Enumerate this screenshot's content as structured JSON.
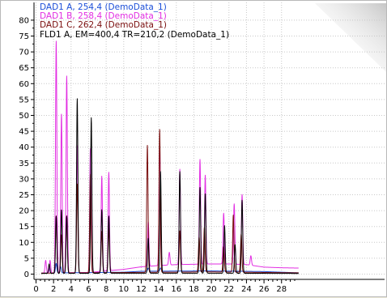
{
  "chart_data": {
    "type": "line",
    "title": "",
    "xlabel": "",
    "ylabel": "",
    "xlim": [
      0,
      30
    ],
    "ylim": [
      -3,
      84
    ],
    "x_ticks": [
      0,
      2,
      4,
      6,
      8,
      10,
      12,
      14,
      16,
      18,
      20,
      22,
      24,
      26,
      28
    ],
    "y_ticks": [
      0,
      5,
      10,
      15,
      20,
      25,
      30,
      35,
      40,
      45,
      50,
      55,
      60,
      65,
      70,
      75,
      80
    ],
    "grid": true,
    "legend_position": "top-left",
    "series": [
      {
        "name": "DAD1 A, 254,4 (DemoData_1)",
        "color": "#1c4fd8",
        "baseline": [
          [
            0,
            0.3
          ],
          [
            10,
            0.6
          ],
          [
            12,
            0.9
          ],
          [
            20,
            1.0
          ],
          [
            26,
            0.8
          ],
          [
            30,
            0.4
          ]
        ],
        "peaks": [
          [
            1.5,
            1.5
          ],
          [
            2.3,
            3
          ],
          [
            2.8,
            2
          ],
          [
            12.8,
            1
          ],
          [
            14.2,
            1
          ]
        ]
      },
      {
        "name": "DAD1 B, 258,4 (DemoData_1)",
        "color": "#e22ee2",
        "baseline": [
          [
            0,
            0.3
          ],
          [
            6,
            0.5
          ],
          [
            8,
            1.0
          ],
          [
            10,
            1.5
          ],
          [
            12,
            2.3
          ],
          [
            14,
            2.7
          ],
          [
            16,
            3.0
          ],
          [
            18,
            3.1
          ],
          [
            20,
            3.2
          ],
          [
            22,
            3.2
          ],
          [
            24,
            3.0
          ],
          [
            26,
            2.2
          ],
          [
            28,
            2.0
          ],
          [
            30,
            1.9
          ]
        ],
        "peaks": [
          [
            1.1,
            4
          ],
          [
            1.6,
            4
          ],
          [
            2.3,
            73
          ],
          [
            2.9,
            50
          ],
          [
            3.5,
            62
          ],
          [
            4.7,
            40
          ],
          [
            6.2,
            39
          ],
          [
            7.5,
            30
          ],
          [
            8.3,
            31
          ],
          [
            12.8,
            14
          ],
          [
            14.1,
            39
          ],
          [
            15.2,
            4
          ],
          [
            16.4,
            30
          ],
          [
            18.7,
            33
          ],
          [
            19.3,
            28
          ],
          [
            21.4,
            16
          ],
          [
            22.6,
            19
          ],
          [
            23.5,
            22
          ],
          [
            24.5,
            3
          ]
        ]
      },
      {
        "name": "DAD1 C, 262,4 (DemoData_1)",
        "color": "#7a0e0e",
        "baseline": [
          [
            0,
            0.3
          ],
          [
            10,
            0.5
          ],
          [
            20,
            0.7
          ],
          [
            30,
            0.4
          ]
        ],
        "peaks": [
          [
            2.3,
            18
          ],
          [
            2.9,
            12
          ],
          [
            3.5,
            18
          ],
          [
            4.7,
            28
          ],
          [
            6.2,
            31
          ],
          [
            7.5,
            13
          ],
          [
            8.3,
            14
          ],
          [
            12.7,
            40
          ],
          [
            14.1,
            45
          ],
          [
            16.4,
            13
          ],
          [
            18.6,
            11
          ],
          [
            19.2,
            14
          ],
          [
            21.4,
            8
          ],
          [
            22.5,
            18
          ],
          [
            23.4,
            12
          ]
        ]
      },
      {
        "name": "FLD1 A, EM=400,4 TR=210,2 (DemoData_1)",
        "color": "#000000",
        "baseline": [
          [
            0,
            0.2
          ],
          [
            10,
            0.3
          ],
          [
            20,
            0.3
          ],
          [
            30,
            0.2
          ]
        ],
        "peaks": [
          [
            1.5,
            3
          ],
          [
            2.3,
            18
          ],
          [
            2.9,
            20
          ],
          [
            3.5,
            18
          ],
          [
            4.7,
            55
          ],
          [
            6.3,
            49
          ],
          [
            7.5,
            20
          ],
          [
            8.3,
            18
          ],
          [
            12.8,
            11
          ],
          [
            14.2,
            32
          ],
          [
            16.4,
            32
          ],
          [
            18.7,
            27
          ],
          [
            19.3,
            25
          ],
          [
            21.5,
            15
          ],
          [
            22.7,
            9
          ],
          [
            23.5,
            23
          ]
        ]
      }
    ]
  }
}
